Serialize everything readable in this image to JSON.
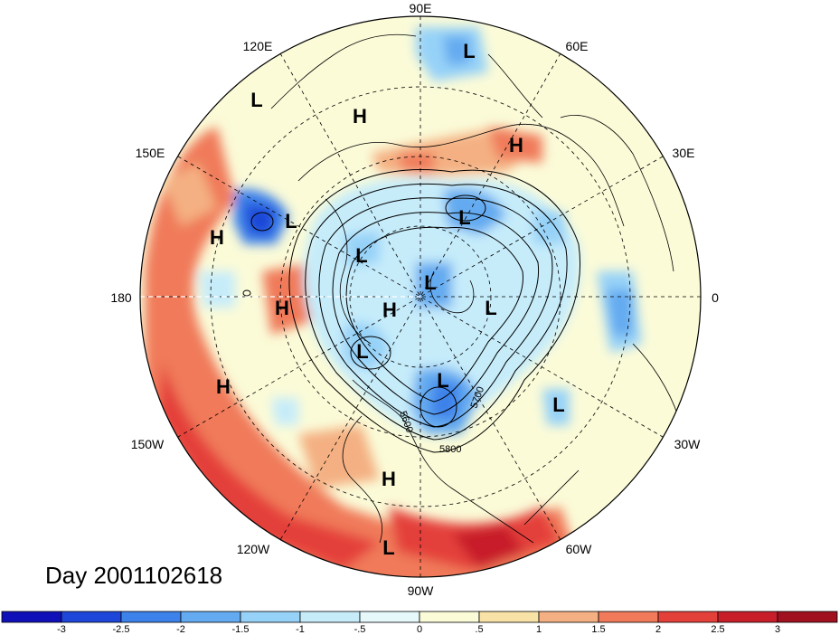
{
  "map": {
    "date_label": "Day 2001102618",
    "longitude_labels": [
      {
        "id": "90e",
        "text": "90E"
      },
      {
        "id": "60e",
        "text": "60E"
      },
      {
        "id": "30e",
        "text": "30E"
      },
      {
        "id": "0",
        "text": "0"
      },
      {
        "id": "30w",
        "text": "30W"
      },
      {
        "id": "60w",
        "text": "60W"
      },
      {
        "id": "90w",
        "text": "90W"
      },
      {
        "id": "120w",
        "text": "120W"
      },
      {
        "id": "150w",
        "text": "150W"
      },
      {
        "id": "180",
        "text": "180"
      },
      {
        "id": "150e",
        "text": "150E"
      },
      {
        "id": "120e",
        "text": "120E"
      }
    ],
    "pressure_markers": [
      {
        "type": "L"
      },
      {
        "type": "H"
      },
      {
        "type": "L"
      },
      {
        "type": "H"
      },
      {
        "type": "H"
      },
      {
        "type": "L"
      },
      {
        "type": "L"
      },
      {
        "type": "H"
      },
      {
        "type": "L"
      },
      {
        "type": "L"
      },
      {
        "type": "H"
      },
      {
        "type": "L"
      },
      {
        "type": "L"
      },
      {
        "type": "H"
      },
      {
        "type": "H"
      },
      {
        "type": "L"
      },
      {
        "type": "L"
      }
    ],
    "contour_labels": [
      "5600",
      "5700",
      "5800"
    ],
    "colors": {
      "background": "#fbfbd8",
      "land_lines": "#000000",
      "grid_lines": "#000000"
    }
  },
  "colorbar": {
    "labels": [
      "-3",
      "-2.5",
      "-2",
      "-1.5",
      "-1",
      "-.5",
      "0",
      ".5",
      "1",
      "1.5",
      "2",
      "2.5",
      "3"
    ],
    "colors": [
      "#1010b8",
      "#1e46d8",
      "#3c82ea",
      "#64aaf0",
      "#96d2f8",
      "#c6ecfa",
      "#e6f8fa",
      "#fbfbd8",
      "#f8e2a6",
      "#f4b082",
      "#f07a5a",
      "#e4403a",
      "#c81e2a",
      "#a0101e"
    ]
  }
}
